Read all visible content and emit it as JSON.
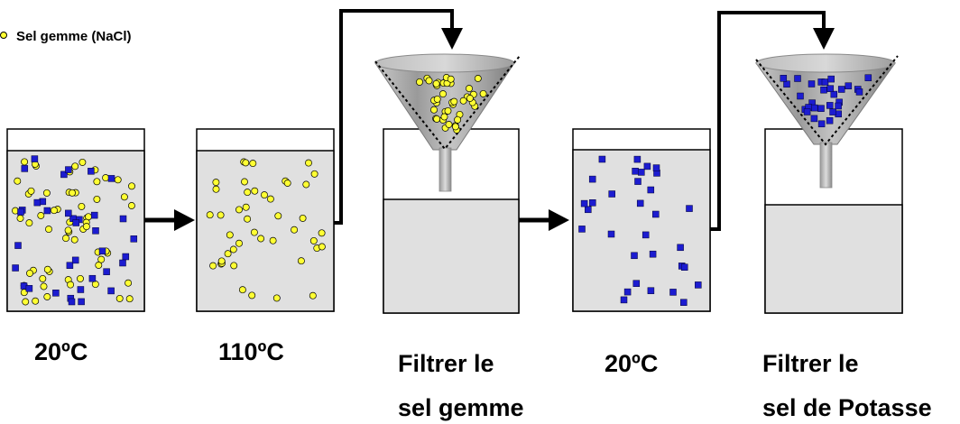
{
  "legend": {
    "items": [
      {
        "label": "Sel gemme (NaCl)",
        "marker": "yellow-circle",
        "color": "#ffff33"
      }
    ]
  },
  "colors": {
    "salt_gemme": "#ffff33",
    "salt_potasse": "#1c1cd0",
    "solution": "#e0e0e0",
    "arrow": "#000000"
  },
  "stages": [
    {
      "temperature": "20ºC"
    },
    {
      "temperature": "110ºC"
    },
    {
      "line1": "Filtrer le",
      "line2": "sel gemme"
    },
    {
      "temperature": "20ºC"
    },
    {
      "line1": "Filtrer le",
      "line2": "sel de Potasse"
    }
  ]
}
